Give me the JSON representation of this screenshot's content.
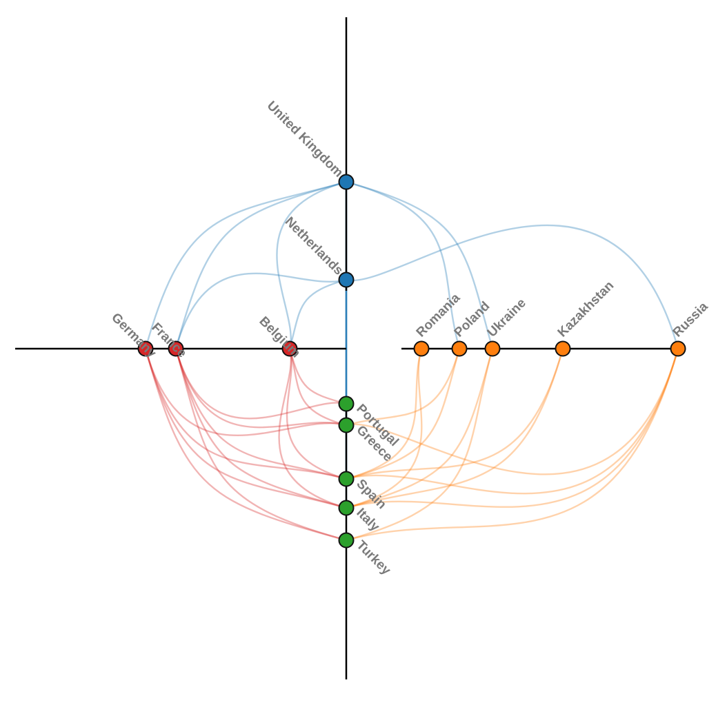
{
  "chart_data": {
    "type": "hive",
    "colors": {
      "north": "#1f77b4",
      "west": "#d62728",
      "east": "#ff7f0e",
      "south": "#2ca02c",
      "axis": "#000000",
      "label": "#7a7a7a"
    },
    "axes": [
      {
        "id": "north",
        "color": "#1f77b4",
        "nodes": [
          {
            "id": "united-kingdom",
            "label": "United Kingdom",
            "r": 242
          },
          {
            "id": "netherlands",
            "label": "Netherlands",
            "r": 100
          }
        ]
      },
      {
        "id": "west",
        "color": "#d62728",
        "nodes": [
          {
            "id": "germany",
            "label": "Germany",
            "r": 291
          },
          {
            "id": "france",
            "label": "France",
            "r": 247
          },
          {
            "id": "belgium",
            "label": "Belgium",
            "r": 82
          }
        ]
      },
      {
        "id": "east",
        "color": "#ff7f0e",
        "nodes": [
          {
            "id": "romania",
            "label": "Romania",
            "r": 109
          },
          {
            "id": "poland",
            "label": "Poland",
            "r": 164
          },
          {
            "id": "ukraine",
            "label": "Ukraine",
            "r": 212
          },
          {
            "id": "kazakhstan",
            "label": "Kazakhstan",
            "r": 314
          },
          {
            "id": "russia",
            "label": "Russia",
            "r": 481
          }
        ]
      },
      {
        "id": "south",
        "color": "#2ca02c",
        "nodes": [
          {
            "id": "portugal",
            "label": "Portugal",
            "r": 80
          },
          {
            "id": "greece",
            "label": "Greece",
            "r": 111
          },
          {
            "id": "spain",
            "label": "Spain",
            "r": 189
          },
          {
            "id": "italy",
            "label": "Italy",
            "r": 231
          },
          {
            "id": "turkey",
            "label": "Turkey",
            "r": 278
          }
        ]
      }
    ],
    "edges": [
      [
        "united-kingdom",
        "germany"
      ],
      [
        "united-kingdom",
        "france"
      ],
      [
        "united-kingdom",
        "belgium"
      ],
      [
        "united-kingdom",
        "ukraine"
      ],
      [
        "united-kingdom",
        "poland"
      ],
      [
        "united-kingdom",
        "portugal"
      ],
      [
        "united-kingdom",
        "greece"
      ],
      [
        "united-kingdom",
        "spain"
      ],
      [
        "united-kingdom",
        "italy"
      ],
      [
        "netherlands",
        "france"
      ],
      [
        "netherlands",
        "belgium"
      ],
      [
        "netherlands",
        "russia"
      ],
      [
        "netherlands",
        "spain"
      ],
      [
        "netherlands",
        "italy"
      ],
      [
        "netherlands",
        "portugal"
      ],
      [
        "germany",
        "spain"
      ],
      [
        "germany",
        "italy"
      ],
      [
        "germany",
        "turkey"
      ],
      [
        "germany",
        "greece"
      ],
      [
        "france",
        "portugal"
      ],
      [
        "france",
        "spain"
      ],
      [
        "france",
        "greece"
      ],
      [
        "france",
        "italy"
      ],
      [
        "france",
        "turkey"
      ],
      [
        "belgium",
        "spain"
      ],
      [
        "belgium",
        "italy"
      ],
      [
        "belgium",
        "portugal"
      ],
      [
        "belgium",
        "greece"
      ],
      [
        "romania",
        "italy"
      ],
      [
        "romania",
        "spain"
      ],
      [
        "poland",
        "greece"
      ],
      [
        "poland",
        "spain"
      ],
      [
        "ukraine",
        "italy"
      ],
      [
        "ukraine",
        "turkey"
      ],
      [
        "kazakhstan",
        "italy"
      ],
      [
        "kazakhstan",
        "spain"
      ],
      [
        "russia",
        "spain"
      ],
      [
        "russia",
        "turkey"
      ],
      [
        "russia",
        "italy"
      ],
      [
        "russia",
        "greece"
      ]
    ]
  }
}
